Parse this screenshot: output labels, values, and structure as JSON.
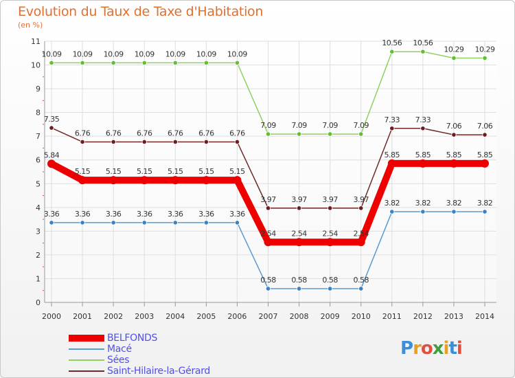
{
  "header": {
    "title": "Evolution du Taux de Taxe d'Habitation",
    "subtitle": "(en %)"
  },
  "logo": {
    "text": "Proxiti"
  },
  "chart_data": {
    "type": "line",
    "title": "Evolution du Taux de Taxe d'Habitation",
    "subtitle": "(en %)",
    "xlabel": "",
    "ylabel": "",
    "ylim": [
      0,
      11
    ],
    "y_ticks": [
      "0",
      "1",
      "2",
      "3",
      "4",
      "5",
      "6",
      "7",
      "8",
      "9",
      "10",
      "11"
    ],
    "x": [
      "2000",
      "2001",
      "2002",
      "2003",
      "2004",
      "2005",
      "2006",
      "2007",
      "2008",
      "2009",
      "2010",
      "2011",
      "2012",
      "2013",
      "2014"
    ],
    "grid": true,
    "legend_position": "bottom-left",
    "series": [
      {
        "name": "Sées",
        "color": "#90d060",
        "marker": "#60c030",
        "values": [
          10.09,
          10.09,
          10.09,
          10.09,
          10.09,
          10.09,
          10.09,
          7.09,
          7.09,
          7.09,
          7.09,
          10.56,
          10.56,
          10.29,
          10.29
        ],
        "labels": [
          "10.09",
          "10.09",
          "10.09",
          "10.09",
          "10.09",
          "10.09",
          "10.09",
          "7.09",
          "7.09",
          "7.09",
          "7.09",
          "10.56",
          "10.56",
          "10.29",
          "10.29"
        ]
      },
      {
        "name": "Saint-Hilaire-la-Gérard",
        "color": "#702828",
        "marker": "#6a1f1f",
        "values": [
          7.35,
          6.76,
          6.76,
          6.76,
          6.76,
          6.76,
          6.76,
          3.97,
          3.97,
          3.97,
          3.97,
          7.33,
          7.33,
          7.06,
          7.06
        ],
        "labels": [
          "7.35",
          "6.76",
          "6.76",
          "6.76",
          "6.76",
          "6.76",
          "6.76",
          "3.97",
          "3.97",
          "3.97",
          "3.97",
          "7.33",
          "7.33",
          "7.06",
          "7.06"
        ]
      },
      {
        "name": "Macé",
        "color": "#5a9ad0",
        "marker": "#3a82c0",
        "values": [
          3.36,
          3.36,
          3.36,
          3.36,
          3.36,
          3.36,
          3.36,
          0.58,
          0.58,
          0.58,
          0.58,
          3.82,
          3.82,
          3.82,
          3.82
        ],
        "labels": [
          "3.36",
          "3.36",
          "3.36",
          "3.36",
          "3.36",
          "3.36",
          "3.36",
          "0.58",
          "0.58",
          "0.58",
          "0.58",
          "3.82",
          "3.82",
          "3.82",
          "3.82"
        ]
      },
      {
        "name": "BELFONDS",
        "color": "#ee0000",
        "marker": "#ee0000",
        "values": [
          5.84,
          5.15,
          5.15,
          5.15,
          5.15,
          5.15,
          5.15,
          2.54,
          2.54,
          2.54,
          2.54,
          5.85,
          5.85,
          5.85,
          5.85
        ],
        "labels": [
          "5.84",
          "5.15",
          "5.15",
          "5.15",
          "5.15",
          "5.15",
          "5.15",
          "2.54",
          "2.54",
          "2.54",
          "2.54",
          "5.85",
          "5.85",
          "5.85",
          "5.85"
        ]
      }
    ],
    "legend": [
      {
        "name": "BELFONDS",
        "color": "#ee0000"
      },
      {
        "name": "Macé",
        "color": "#5a9ad0"
      },
      {
        "name": "Sées",
        "color": "#90d060"
      },
      {
        "name": "Saint-Hilaire-la-Gérard",
        "color": "#702828"
      }
    ]
  }
}
